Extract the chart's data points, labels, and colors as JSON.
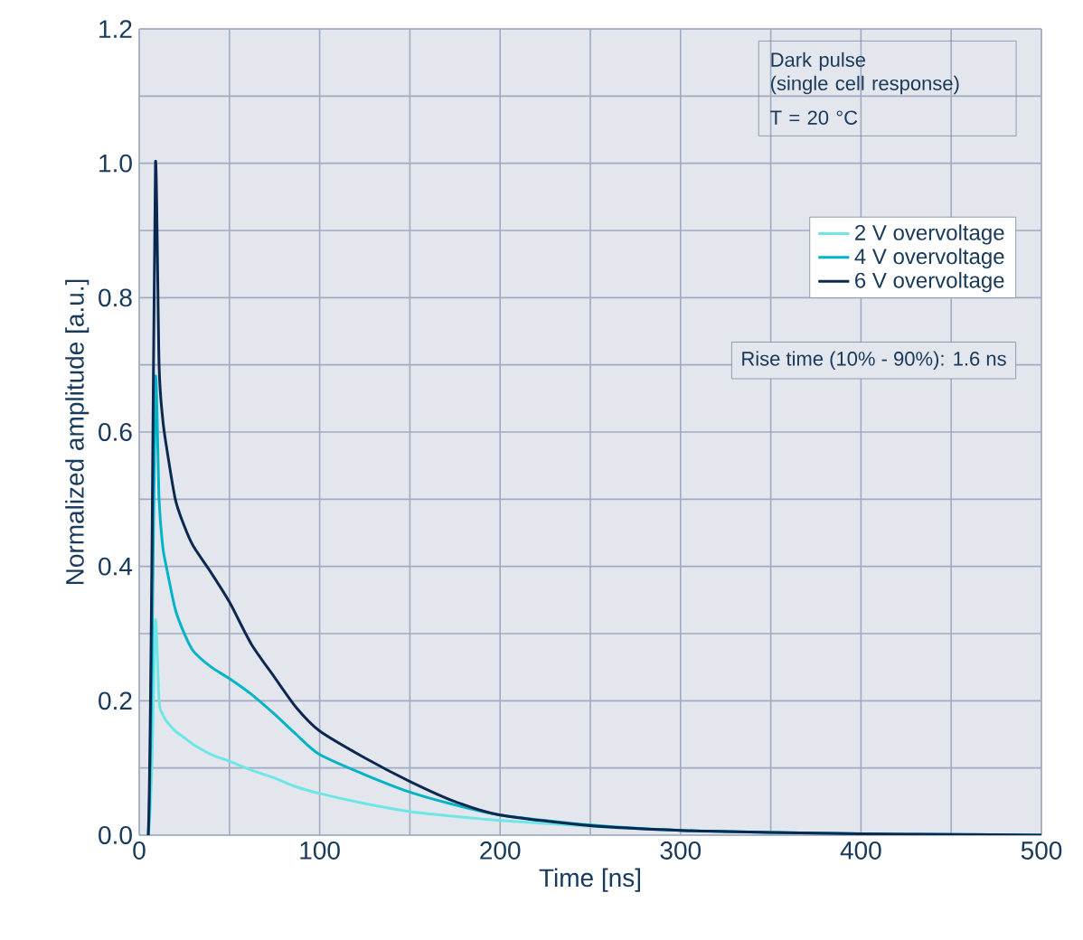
{
  "chart_data": {
    "type": "line",
    "xlabel": "Time [ns]",
    "ylabel": "Normalized amplitude [a.u.]",
    "xlim": [
      0,
      500
    ],
    "ylim": [
      0,
      1.2
    ],
    "xticks": [
      0,
      {
        "value": 50,
        "label": null
      },
      100,
      {
        "value": 150,
        "label": null
      },
      200,
      {
        "value": 250,
        "label": null
      },
      300,
      {
        "value": 350,
        "label": null
      },
      400,
      {
        "value": 450,
        "label": null
      },
      500
    ],
    "yticks": [
      {
        "value": 0,
        "label": "0.0"
      },
      {
        "value": 0.1,
        "label": null
      },
      0.2,
      {
        "value": 0.3,
        "label": null
      },
      0.4,
      {
        "value": 0.5,
        "label": null
      },
      0.6,
      {
        "value": 0.7,
        "label": null
      },
      0.8,
      {
        "value": 0.9,
        "label": null
      },
      {
        "value": 1,
        "label": "1.0"
      },
      {
        "value": 1.1,
        "label": null
      },
      1.2
    ],
    "grid": true,
    "legend": "top right",
    "line_style": "solid",
    "marker": "none",
    "x": [
      0,
      5,
      7,
      9,
      11,
      13,
      15,
      20,
      25,
      30,
      40,
      50,
      62,
      75,
      87,
      100,
      125,
      150,
      175,
      200,
      250,
      300,
      350,
      400,
      450,
      500
    ],
    "series": [
      {
        "name": "2 V overvoltage",
        "color": "#6ee6e6",
        "values": [
          0,
          0,
          0.1,
          0.32,
          0.2,
          0.18,
          0.17,
          0.155,
          0.145,
          0.135,
          0.12,
          0.11,
          0.097,
          0.085,
          0.072,
          0.062,
          0.047,
          0.035,
          0.028,
          0.022,
          0.013,
          0.007,
          0.004,
          0.002,
          0.001,
          0
        ]
      },
      {
        "name": "4 V overvoltage",
        "color": "#00b4c8",
        "values": [
          0,
          0,
          0.25,
          0.68,
          0.5,
          0.43,
          0.4,
          0.336,
          0.3,
          0.274,
          0.25,
          0.233,
          0.21,
          0.18,
          0.15,
          0.12,
          0.09,
          0.064,
          0.045,
          0.03,
          0.015,
          0.007,
          0.004,
          0.002,
          0.001,
          0
        ]
      },
      {
        "name": "6 V overvoltage",
        "color": "#0a2850",
        "values": [
          0,
          0,
          0.4,
          1.0,
          0.7,
          0.62,
          0.58,
          0.5,
          0.46,
          0.43,
          0.39,
          0.347,
          0.285,
          0.235,
          0.19,
          0.155,
          0.115,
          0.08,
          0.05,
          0.03,
          0.014,
          0.007,
          0.004,
          0.002,
          0.001,
          0
        ]
      }
    ],
    "annotations": [
      "Dark pulse",
      "(single cell response)",
      "T = 20 °C",
      "Rise time (10% - 90%): 1.6 ns"
    ]
  }
}
